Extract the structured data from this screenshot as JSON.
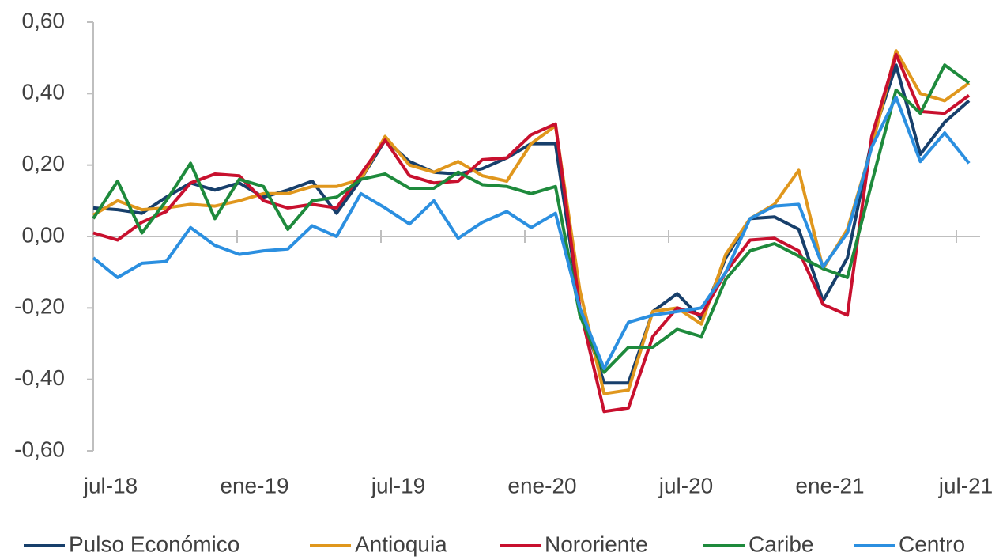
{
  "chart_data": {
    "type": "line",
    "categories": [
      "jul-18",
      null,
      null,
      null,
      null,
      null,
      "ene-19",
      null,
      null,
      null,
      null,
      null,
      "jul-19",
      null,
      null,
      null,
      null,
      null,
      "ene-20",
      null,
      null,
      null,
      null,
      null,
      "jul-20",
      null,
      null,
      null,
      null,
      null,
      "ene-21",
      null,
      null,
      null,
      null,
      null,
      "jul-21"
    ],
    "ylim": [
      -0.6,
      0.6
    ],
    "yticks": [
      {
        "value": -0.6,
        "label": "-0,60"
      },
      {
        "value": -0.4,
        "label": "-0,40"
      },
      {
        "value": -0.2,
        "label": "-0,20"
      },
      {
        "value": 0,
        "label": "0,00"
      },
      {
        "value": 0.2,
        "label": "0,20"
      },
      {
        "value": 0.4,
        "label": "0,40"
      },
      {
        "value": 0.6,
        "label": "0,60"
      }
    ],
    "legend": "bottom",
    "series": [
      {
        "name": "Pulso Económico",
        "color": "#173f6b",
        "values": [
          0.08,
          0.075,
          0.065,
          0.11,
          0.15,
          0.13,
          0.15,
          0.11,
          0.13,
          0.155,
          0.065,
          0.16,
          0.27,
          0.21,
          0.18,
          0.175,
          0.19,
          0.22,
          0.26,
          0.26,
          -0.2,
          -0.41,
          -0.41,
          -0.21,
          -0.16,
          -0.23,
          -0.06,
          0.05,
          0.055,
          0.02,
          -0.18,
          -0.06,
          0.27,
          0.48,
          0.23,
          0.32,
          0.38
        ]
      },
      {
        "name": "Antioquia",
        "color": "#e0971d",
        "values": [
          0.06,
          0.1,
          0.075,
          0.08,
          0.09,
          0.085,
          0.1,
          0.12,
          0.12,
          0.14,
          0.14,
          0.16,
          0.28,
          0.2,
          0.18,
          0.21,
          0.17,
          0.155,
          0.26,
          0.31,
          -0.15,
          -0.44,
          -0.43,
          -0.21,
          -0.2,
          -0.245,
          -0.05,
          0.05,
          0.09,
          0.185,
          -0.09,
          0.02,
          0.25,
          0.52,
          0.4,
          0.38,
          0.43
        ]
      },
      {
        "name": "Nororiente",
        "color": "#c8102e",
        "values": [
          0.01,
          -0.01,
          0.04,
          0.07,
          0.15,
          0.175,
          0.17,
          0.1,
          0.08,
          0.09,
          0.08,
          0.175,
          0.27,
          0.17,
          0.15,
          0.155,
          0.215,
          0.22,
          0.285,
          0.315,
          -0.2,
          -0.49,
          -0.48,
          -0.28,
          -0.2,
          -0.22,
          -0.1,
          -0.01,
          -0.005,
          -0.04,
          -0.19,
          -0.22,
          0.28,
          0.51,
          0.35,
          0.345,
          0.395
        ]
      },
      {
        "name": "Caribe",
        "color": "#1e8a3c",
        "values": [
          0.05,
          0.155,
          0.01,
          0.1,
          0.205,
          0.05,
          0.16,
          0.14,
          0.02,
          0.1,
          0.11,
          0.16,
          0.175,
          0.135,
          0.135,
          0.18,
          0.145,
          0.14,
          0.12,
          0.14,
          -0.22,
          -0.38,
          -0.31,
          -0.31,
          -0.26,
          -0.28,
          -0.12,
          -0.04,
          -0.02,
          -0.055,
          -0.09,
          -0.115,
          0.15,
          0.41,
          0.345,
          0.48,
          0.43
        ]
      },
      {
        "name": "Centro",
        "color": "#2b8fe0",
        "values": [
          -0.06,
          -0.115,
          -0.075,
          -0.07,
          0.025,
          -0.025,
          -0.05,
          -0.04,
          -0.035,
          0.03,
          0,
          0.12,
          0.08,
          0.035,
          0.1,
          -0.005,
          0.04,
          0.07,
          0.025,
          0.065,
          -0.2,
          -0.37,
          -0.24,
          -0.22,
          -0.21,
          -0.2,
          -0.1,
          0.05,
          0.085,
          0.09,
          -0.085,
          0.01,
          0.25,
          0.39,
          0.21,
          0.29,
          0.205
        ]
      }
    ]
  }
}
